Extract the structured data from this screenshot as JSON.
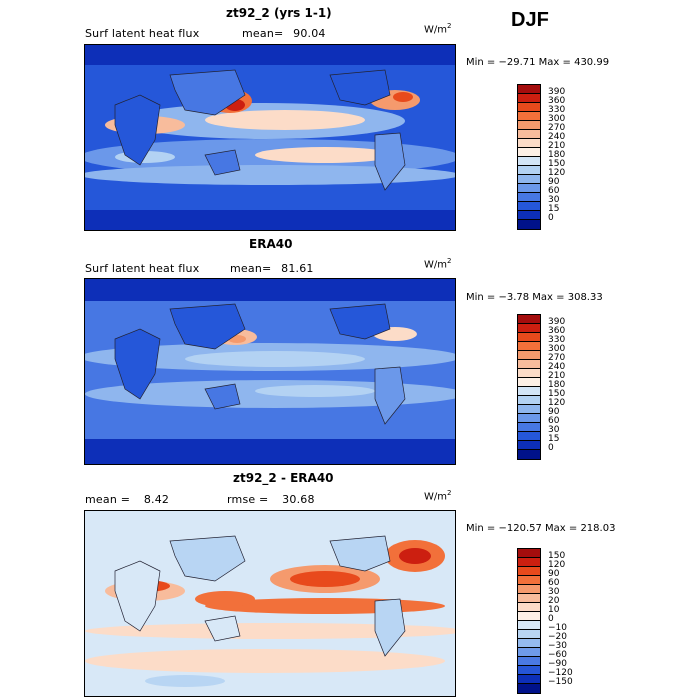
{
  "season": "DJF",
  "units": "W/m",
  "units_sup": "2",
  "panels": [
    {
      "title": "zt92_2 (yrs 1-1)",
      "field_label": "Surf latent heat flux",
      "mean_label": "mean=",
      "mean_value": "90.04",
      "minmax": "Min = −29.71 Max = 430.99"
    },
    {
      "title": "ERA40",
      "field_label": "Surf latent heat flux",
      "mean_label": "mean=",
      "mean_value": "81.61",
      "minmax": "Min =  −3.78 Max = 308.33"
    },
    {
      "title": "zt92_2 - ERA40",
      "mean_label": "mean =",
      "mean_value": "8.42",
      "rmse_label": "rmse =",
      "rmse_value": "30.68",
      "minmax": "Min = −120.57 Max = 218.03"
    }
  ],
  "chart_data": [
    {
      "type": "heatmap",
      "title": "zt92_2 (yrs 1-1)",
      "subtitle": "Surf latent heat flux",
      "mean": 90.04,
      "min": -29.71,
      "max": 430.99,
      "units": "W/m^2",
      "colorbar_levels": [
        "390",
        "360",
        "330",
        "300",
        "270",
        "240",
        "210",
        "180",
        "150",
        "120",
        "90",
        "60",
        "30",
        "15",
        "0"
      ],
      "colorbar_colors": [
        "#a40d0d",
        "#cc1f10",
        "#e84a1c",
        "#f2703a",
        "#f59a6d",
        "#f8bc9c",
        "#fcdcc8",
        "#fdf0e6",
        "#d3e5f7",
        "#b3d2f3",
        "#8fb6ee",
        "#6b98ea",
        "#4777e3",
        "#2557d9",
        "#0d2fb8",
        "#00128a"
      ]
    },
    {
      "type": "heatmap",
      "title": "ERA40",
      "subtitle": "Surf latent heat flux",
      "mean": 81.61,
      "min": -3.78,
      "max": 308.33,
      "units": "W/m^2",
      "colorbar_levels": [
        "390",
        "360",
        "330",
        "300",
        "270",
        "240",
        "210",
        "180",
        "150",
        "120",
        "90",
        "60",
        "30",
        "15",
        "0"
      ],
      "colorbar_colors": [
        "#a40d0d",
        "#cc1f10",
        "#e84a1c",
        "#f2703a",
        "#f59a6d",
        "#f8bc9c",
        "#fcdcc8",
        "#fdf0e6",
        "#d3e5f7",
        "#b3d2f3",
        "#8fb6ee",
        "#6b98ea",
        "#4777e3",
        "#2557d9",
        "#0d2fb8",
        "#00128a"
      ]
    },
    {
      "type": "heatmap",
      "title": "zt92_2 - ERA40",
      "mean": 8.42,
      "rmse": 30.68,
      "min": -120.57,
      "max": 218.03,
      "units": "W/m^2",
      "colorbar_levels": [
        "150",
        "120",
        "90",
        "60",
        "30",
        "20",
        "10",
        "0",
        "−10",
        "−20",
        "−30",
        "−60",
        "−90",
        "−120",
        "−150"
      ],
      "colorbar_colors": [
        "#a40d0d",
        "#cc1f10",
        "#e84a1c",
        "#f2703a",
        "#f59a6d",
        "#f8bc9c",
        "#fcdcc8",
        "#fdf0e6",
        "#d8e8f7",
        "#b8d5f3",
        "#95bbef",
        "#6f9bea",
        "#4a79e3",
        "#2655d6",
        "#0d2fb8",
        "#00128a"
      ]
    }
  ]
}
